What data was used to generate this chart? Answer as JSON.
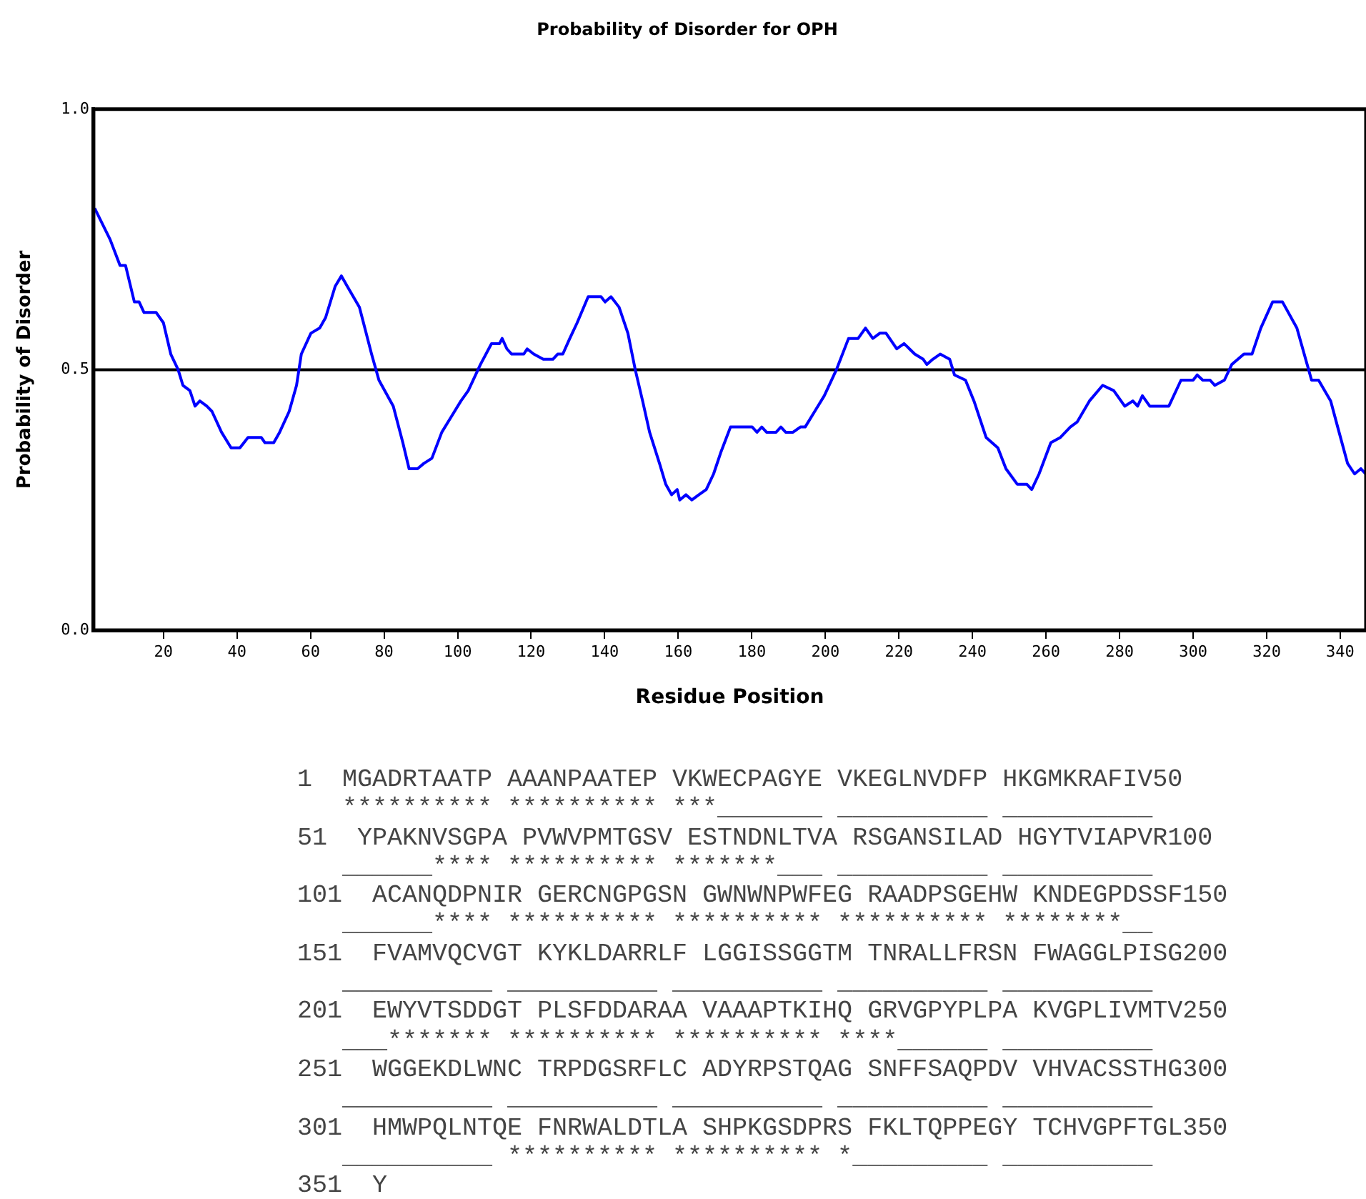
{
  "chart_data": {
    "type": "line",
    "title": "Probability of Disorder for OPH",
    "xlabel": "Residue Position",
    "ylabel": "Probability of Disorder",
    "xlim": [
      1,
      347
    ],
    "xticks": [
      20,
      40,
      60,
      80,
      100,
      120,
      140,
      160,
      180,
      200,
      220,
      240,
      260,
      280,
      300,
      320,
      340
    ],
    "ylim": [
      0,
      1
    ],
    "yticks": [
      {
        "value": 0,
        "label": "0.0"
      },
      {
        "value": 0.5,
        "label": "0.5"
      },
      {
        "value": 1,
        "label": "1.0"
      }
    ],
    "grid": false,
    "legend": false,
    "marker": "none",
    "line_style": "solid",
    "ref_lines": [
      {
        "axis": "y",
        "value": 0.5,
        "color": "#000000",
        "line_style": "solid"
      }
    ],
    "series": [
      {
        "color": "#0000ff",
        "x": [
          1.3,
          5.5,
          8.2,
          9.7,
          12.1,
          13.4,
          14.7,
          18,
          20,
          22,
          24,
          25.3,
          27.2,
          28.6,
          29.9,
          31.8,
          33.2,
          35.8,
          38.4,
          40.8,
          43,
          44.7,
          46.6,
          47.6,
          50,
          51.6,
          54.2,
          56.2,
          57.5,
          60.1,
          62.5,
          64.1,
          66.7,
          68.4,
          70,
          73.3,
          76.6,
          78.6,
          82.5,
          85.1,
          86.8,
          89.1,
          90.8,
          93,
          95.7,
          98.3,
          100.9,
          102.9,
          106.2,
          109.2,
          111.4,
          112.1,
          113.4,
          114.7,
          118,
          118.9,
          120.7,
          123.3,
          125.9,
          127.2,
          128.6,
          130.5,
          132.5,
          135.5,
          139,
          140.1,
          141.7,
          143.9,
          146.3,
          148.3,
          150.3,
          152.2,
          154.9,
          156.6,
          158.2,
          159.7,
          160.4,
          162.1,
          163.7,
          165.6,
          167.6,
          169.6,
          171.5,
          174.2,
          180.1,
          181.4,
          182.7,
          184,
          186.6,
          187.9,
          189.2,
          191.2,
          193.2,
          194.5,
          197.1,
          199.7,
          203,
          206.3,
          208.9,
          210.9,
          212.9,
          214.8,
          216.5,
          219.4,
          221.4,
          224.3,
          226.6,
          227.6,
          229.2,
          231.2,
          233.8,
          235.1,
          238.1,
          240.4,
          243.7,
          246.9,
          249.1,
          252.2,
          254.8,
          256.1,
          258.1,
          261.3,
          263.9,
          266.6,
          268.5,
          271.8,
          275.4,
          278.4,
          281.4,
          283.6,
          284.9,
          286.2,
          288.2,
          293.4,
          296.7,
          300,
          301.1,
          302.6,
          304.6,
          305.9,
          308.5,
          310.5,
          313.8,
          316,
          318.4,
          321.6,
          324.3,
          328.2,
          332.2,
          334.1,
          337.4,
          339.3,
          342,
          343.9,
          345.6,
          346.9
        ],
        "values": [
          0.81,
          0.75,
          0.7,
          0.7,
          0.63,
          0.63,
          0.61,
          0.61,
          0.59,
          0.53,
          0.5,
          0.47,
          0.46,
          0.43,
          0.44,
          0.43,
          0.42,
          0.38,
          0.35,
          0.35,
          0.37,
          0.37,
          0.37,
          0.36,
          0.36,
          0.38,
          0.42,
          0.47,
          0.53,
          0.57,
          0.58,
          0.6,
          0.66,
          0.68,
          0.66,
          0.62,
          0.53,
          0.48,
          0.43,
          0.36,
          0.31,
          0.31,
          0.32,
          0.33,
          0.38,
          0.41,
          0.44,
          0.46,
          0.51,
          0.55,
          0.55,
          0.56,
          0.54,
          0.53,
          0.53,
          0.54,
          0.53,
          0.52,
          0.52,
          0.53,
          0.53,
          0.56,
          0.59,
          0.64,
          0.64,
          0.63,
          0.64,
          0.62,
          0.57,
          0.5,
          0.44,
          0.38,
          0.32,
          0.28,
          0.26,
          0.27,
          0.25,
          0.26,
          0.25,
          0.26,
          0.27,
          0.3,
          0.34,
          0.39,
          0.39,
          0.38,
          0.39,
          0.38,
          0.38,
          0.39,
          0.38,
          0.38,
          0.39,
          0.39,
          0.42,
          0.45,
          0.5,
          0.56,
          0.56,
          0.58,
          0.56,
          0.57,
          0.57,
          0.54,
          0.55,
          0.53,
          0.52,
          0.51,
          0.52,
          0.53,
          0.52,
          0.49,
          0.48,
          0.44,
          0.37,
          0.35,
          0.31,
          0.28,
          0.28,
          0.27,
          0.3,
          0.36,
          0.37,
          0.39,
          0.4,
          0.44,
          0.47,
          0.46,
          0.43,
          0.44,
          0.43,
          0.45,
          0.43,
          0.43,
          0.48,
          0.48,
          0.49,
          0.48,
          0.48,
          0.47,
          0.48,
          0.51,
          0.53,
          0.53,
          0.58,
          0.63,
          0.63,
          0.58,
          0.48,
          0.48,
          0.44,
          0.39,
          0.32,
          0.3,
          0.31,
          0.3
        ]
      }
    ],
    "annotations": [
      "1  MGADRTAATP AAANPAATEP VKWECPAGYE VKEGLNVDFP HKGMKRAFIV50",
      "   ********** ********** ***_______ __________ __________",
      "51  YPAKNVSGPA PVWVPMTGSV ESTNDNLTVA RSGANSILAD HGYTVIAPVR100",
      "   ______**** ********** *******___ __________ __________",
      "101  ACANQDPNIR GERCNGPGSN GWNWNPWFEG RAADPSGEHW KNDEGPDSSF150",
      "   ______**** ********** ********** ********** ********__",
      "151  FVAMVQCVGT KYKLDARRLF LGGISSGGTM TNRALLFRSN FWAGGLPISG200",
      "   __________ __________ __________ __________ __________",
      "201  EWYVTSDDGT PLSFDDARAA VAAAPTKIHQ GRVGPYPLPA KVGPLIVMTV250",
      "   ___******* ********** ********** ****______ __________",
      "251  WGGEKDLWNC TRPDGSRFLC ADYRPSTQAG SNFFSAQPDV VHVACSSTHG300",
      "   __________ __________ __________ __________ __________",
      "301  HMWPQLNTQE FNRWALDTLA SHPKGSDPRS FKLTQPPEGY TCHVGPFTGL350",
      "   __________ ********** ********** *_________ __________",
      "351  Y"
    ]
  }
}
